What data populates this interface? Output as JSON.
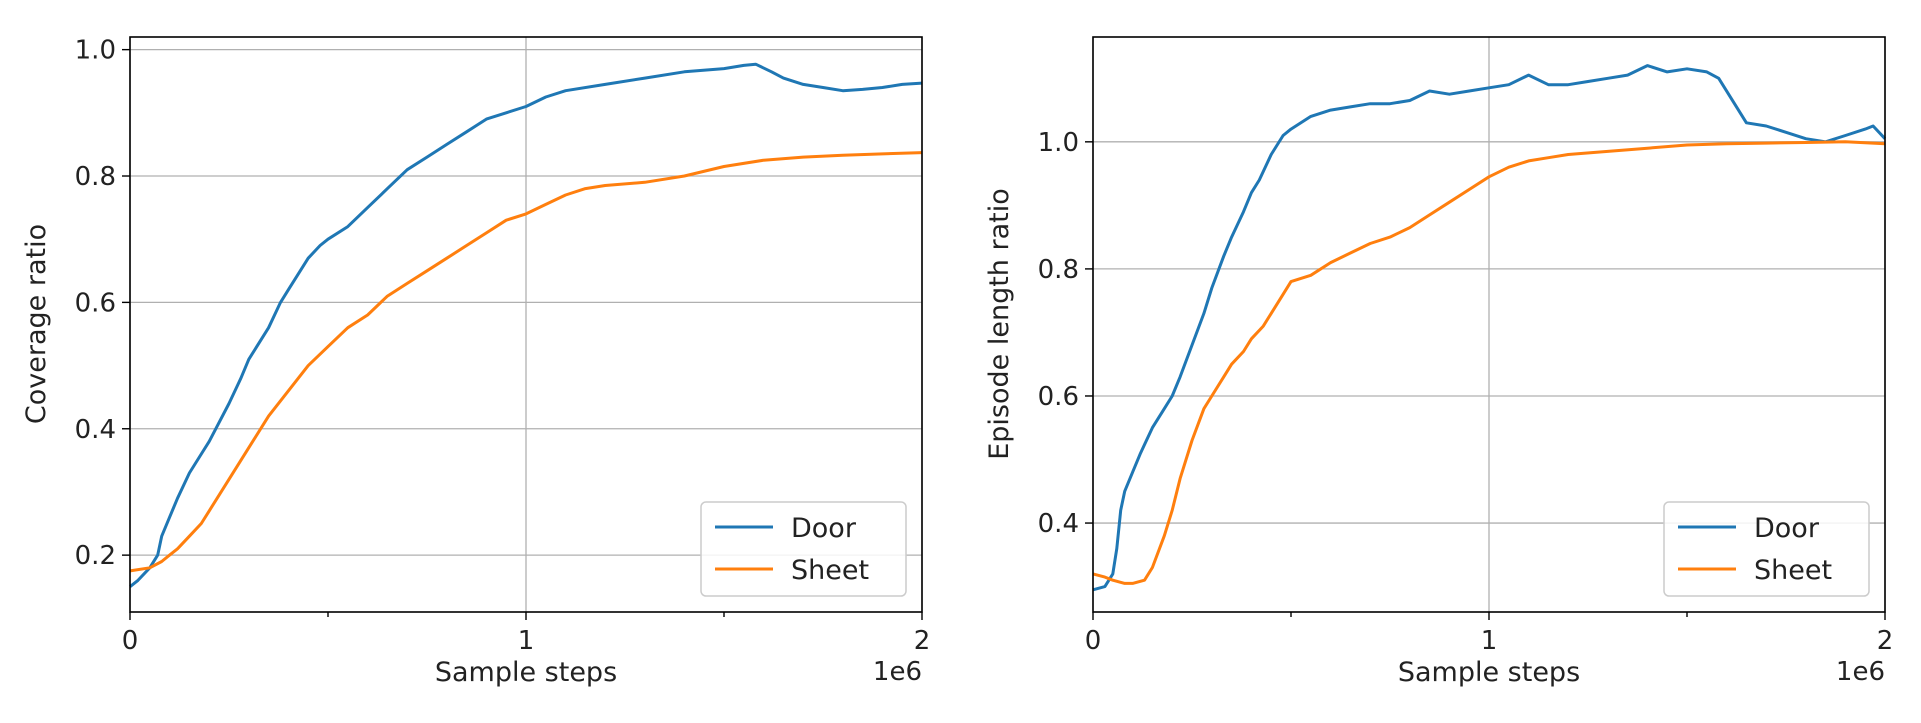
{
  "chart_data": [
    {
      "type": "line",
      "title": "",
      "xlabel": "Sample steps",
      "ylabel": "Coverage ratio",
      "x_offset_label": "1e6",
      "xlim": [
        0,
        2
      ],
      "ylim": [
        0.11,
        1.02
      ],
      "x_ticks": [
        0,
        1,
        2
      ],
      "y_ticks": [
        0.2,
        0.4,
        0.6,
        0.8,
        1.0
      ],
      "grid": true,
      "legend_position": "bottom-right",
      "series": [
        {
          "name": "Door",
          "color": "#1f77b4",
          "x": [
            0,
            0.02,
            0.05,
            0.07,
            0.08,
            0.1,
            0.12,
            0.15,
            0.18,
            0.2,
            0.25,
            0.28,
            0.3,
            0.35,
            0.38,
            0.4,
            0.45,
            0.48,
            0.5,
            0.55,
            0.6,
            0.65,
            0.7,
            0.75,
            0.8,
            0.85,
            0.9,
            0.95,
            1.0,
            1.05,
            1.1,
            1.2,
            1.3,
            1.4,
            1.5,
            1.55,
            1.58,
            1.62,
            1.65,
            1.7,
            1.75,
            1.8,
            1.85,
            1.9,
            1.95,
            2.0
          ],
          "y": [
            0.15,
            0.16,
            0.18,
            0.2,
            0.23,
            0.26,
            0.29,
            0.33,
            0.36,
            0.38,
            0.44,
            0.48,
            0.51,
            0.56,
            0.6,
            0.62,
            0.67,
            0.69,
            0.7,
            0.72,
            0.75,
            0.78,
            0.81,
            0.83,
            0.85,
            0.87,
            0.89,
            0.9,
            0.91,
            0.925,
            0.935,
            0.945,
            0.955,
            0.965,
            0.97,
            0.975,
            0.977,
            0.965,
            0.955,
            0.945,
            0.94,
            0.935,
            0.937,
            0.94,
            0.945,
            0.947
          ]
        },
        {
          "name": "Sheet",
          "color": "#ff7f0e",
          "x": [
            0,
            0.05,
            0.08,
            0.1,
            0.12,
            0.15,
            0.18,
            0.2,
            0.25,
            0.3,
            0.35,
            0.4,
            0.45,
            0.5,
            0.55,
            0.6,
            0.65,
            0.7,
            0.75,
            0.8,
            0.85,
            0.9,
            0.95,
            1.0,
            1.05,
            1.1,
            1.15,
            1.2,
            1.3,
            1.4,
            1.5,
            1.6,
            1.7,
            1.8,
            1.9,
            2.0
          ],
          "y": [
            0.175,
            0.18,
            0.19,
            0.2,
            0.21,
            0.23,
            0.25,
            0.27,
            0.32,
            0.37,
            0.42,
            0.46,
            0.5,
            0.53,
            0.56,
            0.58,
            0.61,
            0.63,
            0.65,
            0.67,
            0.69,
            0.71,
            0.73,
            0.74,
            0.755,
            0.77,
            0.78,
            0.785,
            0.79,
            0.8,
            0.815,
            0.825,
            0.83,
            0.833,
            0.835,
            0.837
          ]
        }
      ]
    },
    {
      "type": "line",
      "title": "",
      "xlabel": "Sample steps",
      "ylabel": "Episode length ratio",
      "x_offset_label": "1e6",
      "xlim": [
        0,
        2
      ],
      "ylim": [
        0.26,
        1.165
      ],
      "x_ticks": [
        0,
        1,
        2
      ],
      "y_ticks": [
        0.4,
        0.6,
        0.8,
        1.0
      ],
      "grid": true,
      "legend_position": "bottom-right",
      "series": [
        {
          "name": "Door",
          "color": "#1f77b4",
          "x": [
            0,
            0.03,
            0.05,
            0.06,
            0.07,
            0.08,
            0.1,
            0.12,
            0.15,
            0.18,
            0.2,
            0.22,
            0.25,
            0.28,
            0.3,
            0.33,
            0.35,
            0.38,
            0.4,
            0.42,
            0.45,
            0.48,
            0.5,
            0.55,
            0.6,
            0.65,
            0.7,
            0.75,
            0.8,
            0.85,
            0.9,
            0.95,
            1.0,
            1.05,
            1.1,
            1.15,
            1.2,
            1.25,
            1.3,
            1.35,
            1.4,
            1.45,
            1.5,
            1.55,
            1.58,
            1.62,
            1.65,
            1.7,
            1.75,
            1.8,
            1.85,
            1.9,
            1.95,
            1.97,
            2.0
          ],
          "y": [
            0.295,
            0.3,
            0.32,
            0.36,
            0.42,
            0.45,
            0.48,
            0.51,
            0.55,
            0.58,
            0.6,
            0.63,
            0.68,
            0.73,
            0.77,
            0.82,
            0.85,
            0.89,
            0.92,
            0.94,
            0.98,
            1.01,
            1.02,
            1.04,
            1.05,
            1.055,
            1.06,
            1.06,
            1.065,
            1.08,
            1.075,
            1.08,
            1.085,
            1.09,
            1.105,
            1.09,
            1.09,
            1.095,
            1.1,
            1.105,
            1.12,
            1.11,
            1.115,
            1.11,
            1.1,
            1.06,
            1.03,
            1.025,
            1.015,
            1.005,
            1.0,
            1.01,
            1.02,
            1.025,
            1.005
          ]
        },
        {
          "name": "Sheet",
          "color": "#ff7f0e",
          "x": [
            0,
            0.03,
            0.05,
            0.08,
            0.1,
            0.13,
            0.15,
            0.18,
            0.2,
            0.22,
            0.25,
            0.28,
            0.3,
            0.33,
            0.35,
            0.38,
            0.4,
            0.43,
            0.45,
            0.48,
            0.5,
            0.55,
            0.6,
            0.65,
            0.7,
            0.75,
            0.8,
            0.85,
            0.9,
            0.95,
            1.0,
            1.05,
            1.1,
            1.15,
            1.2,
            1.3,
            1.4,
            1.5,
            1.6,
            1.7,
            1.8,
            1.9,
            2.0
          ],
          "y": [
            0.32,
            0.315,
            0.31,
            0.305,
            0.305,
            0.31,
            0.33,
            0.38,
            0.42,
            0.47,
            0.53,
            0.58,
            0.6,
            0.63,
            0.65,
            0.67,
            0.69,
            0.71,
            0.73,
            0.76,
            0.78,
            0.79,
            0.81,
            0.825,
            0.84,
            0.85,
            0.865,
            0.885,
            0.905,
            0.925,
            0.945,
            0.96,
            0.97,
            0.975,
            0.98,
            0.985,
            0.99,
            0.995,
            0.997,
            0.998,
            0.999,
            1.0,
            0.997
          ]
        }
      ]
    }
  ]
}
